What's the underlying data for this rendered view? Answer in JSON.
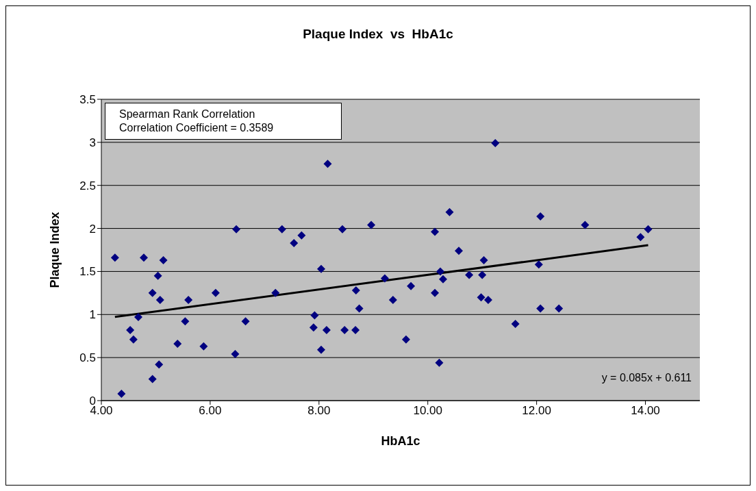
{
  "chart_data": {
    "type": "scatter",
    "title": "Plaque Index  vs  HbA1c",
    "xlabel": "HbA1c",
    "ylabel": "Plaque Index",
    "xlim": [
      4,
      15
    ],
    "xticks": [
      {
        "value": 4,
        "label": "4.00"
      },
      {
        "value": 6,
        "label": "6.00"
      },
      {
        "value": 8,
        "label": "8.00"
      },
      {
        "value": 10,
        "label": "10.00"
      },
      {
        "value": 12,
        "label": "12.00"
      },
      {
        "value": 14,
        "label": "14.00"
      }
    ],
    "ylim": [
      0,
      3.5
    ],
    "yticks": [
      0,
      0.5,
      1,
      1.5,
      2,
      2.5,
      3,
      3.5
    ],
    "grid": "y",
    "annotations": [
      "Spearman Rank Correlation\nCorrelation Coefficient = 0.3589",
      "y = 0.085x + 0.611"
    ],
    "series": [
      {
        "marker": "diamond",
        "color": "#000080",
        "x": [
          4.25,
          4.37,
          4.53,
          4.59,
          4.68,
          4.78,
          4.94,
          4.94,
          5.04,
          5.06,
          5.08,
          5.14,
          5.4,
          5.54,
          5.6,
          5.88,
          6.1,
          6.46,
          6.48,
          6.65,
          7.2,
          7.32,
          7.54,
          7.68,
          7.9,
          7.92,
          8.04,
          8.04,
          8.14,
          8.16,
          8.43,
          8.47,
          8.67,
          8.68,
          8.74,
          8.96,
          9.21,
          9.36,
          9.6,
          9.69,
          10.13,
          10.13,
          10.21,
          10.23,
          10.28,
          10.4,
          10.57,
          10.76,
          10.98,
          11.0,
          11.03,
          11.11,
          11.24,
          11.61,
          12.04,
          12.07,
          12.07,
          12.41,
          12.89,
          13.91,
          14.05
        ],
        "values": [
          1.66,
          0.08,
          0.82,
          0.71,
          0.97,
          1.66,
          1.25,
          0.25,
          1.45,
          0.42,
          1.17,
          1.63,
          0.66,
          0.92,
          1.17,
          0.63,
          1.25,
          0.54,
          1.99,
          0.92,
          1.25,
          1.99,
          1.83,
          1.92,
          0.85,
          0.99,
          1.53,
          0.59,
          0.82,
          2.75,
          1.99,
          0.82,
          0.82,
          1.28,
          1.07,
          2.04,
          1.42,
          1.17,
          0.71,
          1.33,
          1.96,
          1.25,
          0.44,
          1.5,
          1.41,
          2.19,
          1.74,
          1.46,
          1.2,
          1.46,
          1.63,
          1.17,
          2.99,
          0.89,
          1.58,
          2.14,
          1.07,
          1.07,
          2.04,
          1.9,
          1.99
        ]
      },
      {
        "type": "line",
        "marker": "none",
        "color": "#000000",
        "x": [
          4.25,
          14.05
        ],
        "values": [
          0.972,
          1.805
        ]
      }
    ]
  }
}
